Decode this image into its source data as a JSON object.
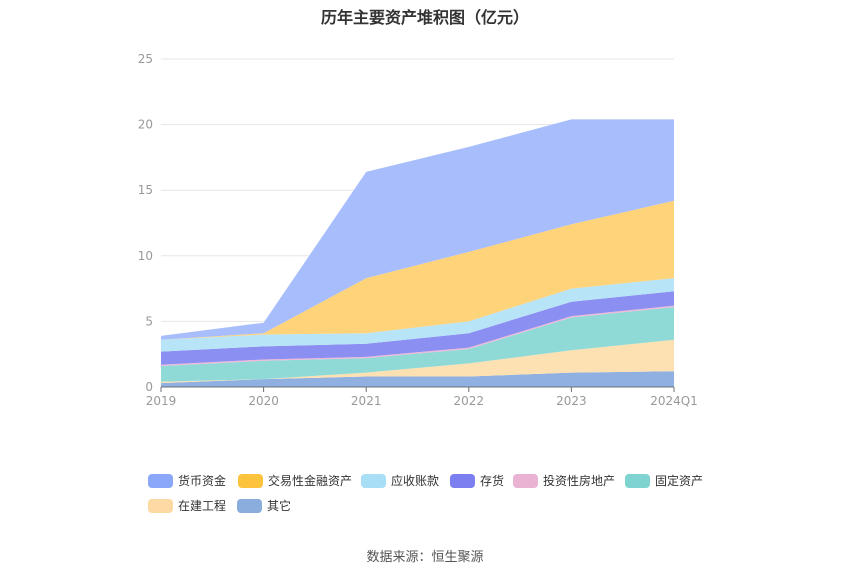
{
  "title": "历年主要资产堆积图（亿元）",
  "source": "数据来源：恒生聚源",
  "chart_data": {
    "type": "area",
    "stacked": true,
    "categories": [
      "2019",
      "2020",
      "2021",
      "2022",
      "2023",
      "2024Q1"
    ],
    "ylim": [
      0,
      25
    ],
    "yticks": [
      0,
      5,
      10,
      15,
      20,
      25
    ],
    "grid": true,
    "legend_position": "bottom",
    "series": [
      {
        "name": "其它",
        "color": "#8fb0e1",
        "values": [
          0.3,
          0.6,
          0.8,
          0.8,
          1.1,
          1.2
        ]
      },
      {
        "name": "在建工程",
        "color": "#fde1b2",
        "values": [
          0.1,
          0.0,
          0.3,
          1.0,
          1.7,
          2.4
        ]
      },
      {
        "name": "固定资产",
        "color": "#8fdad7",
        "values": [
          1.2,
          1.4,
          1.1,
          1.1,
          2.5,
          2.5
        ]
      },
      {
        "name": "投资性房地产",
        "color": "#f0b8d8",
        "values": [
          0.1,
          0.1,
          0.1,
          0.1,
          0.1,
          0.1
        ]
      },
      {
        "name": "存货",
        "color": "#8b8ff2",
        "values": [
          1.0,
          1.0,
          1.0,
          1.1,
          1.1,
          1.1
        ]
      },
      {
        "name": "应收账款",
        "color": "#b8e4f8",
        "values": [
          0.9,
          0.9,
          0.8,
          0.9,
          1.0,
          1.0
        ]
      },
      {
        "name": "交易性金融资产",
        "color": "#fed37a",
        "values": [
          0.0,
          0.1,
          4.2,
          5.3,
          4.9,
          5.9
        ]
      },
      {
        "name": "货币资金",
        "color": "#a8bdfc",
        "values": [
          0.3,
          0.8,
          8.1,
          8.0,
          8.0,
          6.2
        ]
      }
    ]
  },
  "legend": [
    {
      "name": "货币资金",
      "color": "#8aa7f9"
    },
    {
      "name": "交易性金融资产",
      "color": "#fec33d"
    },
    {
      "name": "应收账款",
      "color": "#a9dff6"
    },
    {
      "name": "存货",
      "color": "#7b7ff0"
    },
    {
      "name": "投资性房地产",
      "color": "#ebb3d3"
    },
    {
      "name": "固定资产",
      "color": "#7fd4d1"
    },
    {
      "name": "在建工程",
      "color": "#fdd9a3"
    },
    {
      "name": "其它",
      "color": "#8aaddd"
    }
  ]
}
